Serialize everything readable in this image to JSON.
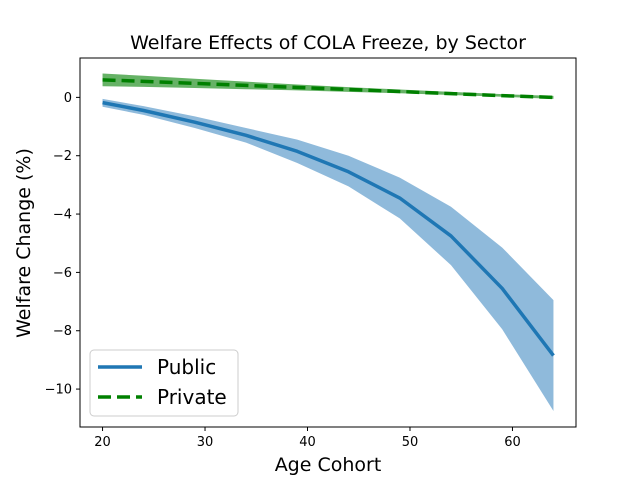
{
  "chart_data": {
    "type": "line",
    "title": "Welfare Effects of COLA Freeze, by Sector",
    "xlabel": "Age Cohort",
    "ylabel": "Welfare Change (%)",
    "xlim": [
      17.8,
      66.2
    ],
    "ylim": [
      -11.3,
      1.35
    ],
    "xticks": [
      20,
      30,
      40,
      50,
      60
    ],
    "yticks": [
      -10,
      -8,
      -6,
      -4,
      -2,
      0
    ],
    "grid": false,
    "legend_position": "lower-left",
    "x": [
      20,
      24,
      29,
      34,
      39,
      44,
      49,
      54,
      59,
      64
    ],
    "series": [
      {
        "name": "Public",
        "color": "#1f77b4",
        "band_color": "#8fbadb",
        "line_style": "solid",
        "values": [
          -0.18,
          -0.45,
          -0.85,
          -1.3,
          -1.85,
          -2.55,
          -3.45,
          -4.75,
          -6.55,
          -8.85
        ],
        "band_upper": [
          -0.05,
          -0.3,
          -0.65,
          -1.05,
          -1.45,
          -2.0,
          -2.75,
          -3.75,
          -5.15,
          -6.95
        ],
        "band_lower": [
          -0.32,
          -0.6,
          -1.05,
          -1.55,
          -2.25,
          -3.05,
          -4.15,
          -5.75,
          -7.95,
          -10.75
        ]
      },
      {
        "name": "Private",
        "color": "#008000",
        "band_color": "#66b266",
        "line_style": "dashed",
        "values": [
          0.6,
          0.55,
          0.48,
          0.41,
          0.34,
          0.27,
          0.2,
          0.13,
          0.06,
          0.0
        ],
        "band_upper": [
          0.82,
          0.74,
          0.64,
          0.54,
          0.44,
          0.35,
          0.27,
          0.19,
          0.11,
          0.05
        ],
        "band_lower": [
          0.38,
          0.36,
          0.32,
          0.28,
          0.24,
          0.19,
          0.14,
          0.08,
          0.02,
          -0.05
        ]
      }
    ]
  }
}
